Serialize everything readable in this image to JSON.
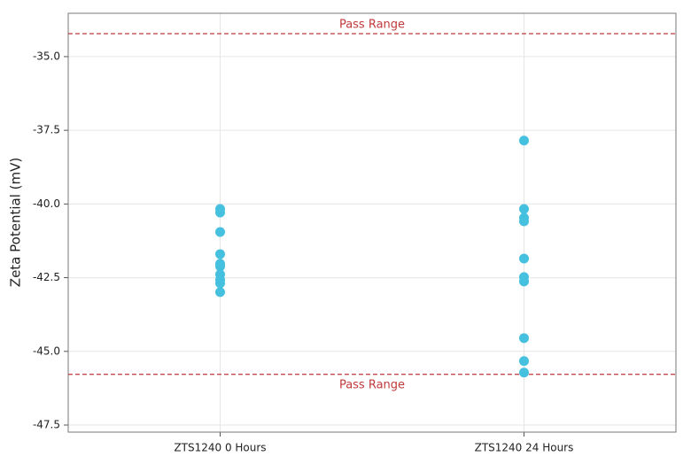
{
  "chart_data": {
    "type": "strip",
    "ylabel": "Zeta Potential (mV)",
    "categories": [
      "ZTS1240 0 Hours",
      "ZTS1240 24 Hours"
    ],
    "values": [
      [
        -40.17,
        -40.29,
        -40.95,
        -41.7,
        -42.03,
        -42.12,
        -42.39,
        -42.57,
        -42.69,
        -42.99
      ],
      [
        -37.85,
        -40.17,
        -40.47,
        -40.59,
        -41.85,
        -42.48,
        -42.63,
        -44.55,
        -45.33,
        -45.72
      ]
    ],
    "color": "#45c0df",
    "ylim": [
      -47.74,
      -33.53
    ],
    "yticks": [
      {
        "value": -35,
        "label": "-35.0"
      },
      -37.5,
      {
        "value": -40,
        "label": "-40.0"
      },
      -42.5,
      {
        "value": -45,
        "label": "-45.0"
      },
      -47.5
    ],
    "grid": true,
    "reference_lines": [
      {
        "value": -34.22,
        "label": "Pass Range",
        "color": "#c0393b"
      },
      {
        "value": -45.78,
        "label": "Pass Range",
        "color": "#c0393b"
      }
    ]
  }
}
